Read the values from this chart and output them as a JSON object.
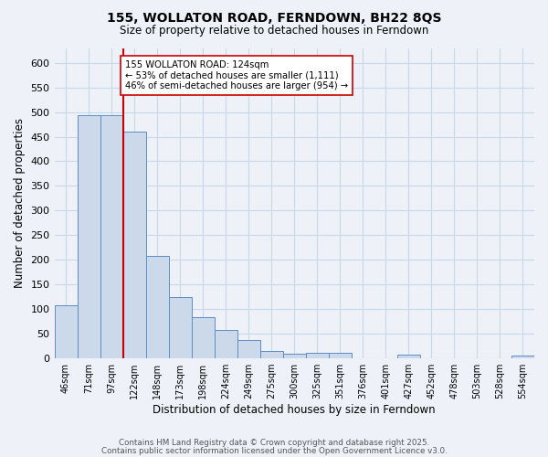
{
  "title": "155, WOLLATON ROAD, FERNDOWN, BH22 8QS",
  "subtitle": "Size of property relative to detached houses in Ferndown",
  "xlabel": "Distribution of detached houses by size in Ferndown",
  "ylabel": "Number of detached properties",
  "bar_labels": [
    "46sqm",
    "71sqm",
    "97sqm",
    "122sqm",
    "148sqm",
    "173sqm",
    "198sqm",
    "224sqm",
    "249sqm",
    "275sqm",
    "300sqm",
    "325sqm",
    "351sqm",
    "376sqm",
    "401sqm",
    "427sqm",
    "452sqm",
    "478sqm",
    "503sqm",
    "528sqm",
    "554sqm"
  ],
  "bar_values": [
    108,
    493,
    493,
    460,
    208,
    125,
    84,
    57,
    38,
    15,
    9,
    12,
    11,
    1,
    1,
    7,
    1,
    0,
    0,
    0,
    6
  ],
  "bar_color": "#ccd9ea",
  "bar_edge_color": "#5b8ec4",
  "grid_color": "#c8d8e8",
  "background_color": "#eef2f8",
  "vline_color": "#cc0000",
  "annotation_text": "155 WOLLATON ROAD: 124sqm\n← 53% of detached houses are smaller (1,111)\n46% of semi-detached houses are larger (954) →",
  "annotation_box_color": "#ffffff",
  "annotation_box_edge": "#cc0000",
  "footer_line1": "Contains HM Land Registry data © Crown copyright and database right 2025.",
  "footer_line2": "Contains public sector information licensed under the Open Government Licence v3.0.",
  "ylim": [
    0,
    630
  ],
  "yticks": [
    0,
    50,
    100,
    150,
    200,
    250,
    300,
    350,
    400,
    450,
    500,
    550,
    600
  ]
}
